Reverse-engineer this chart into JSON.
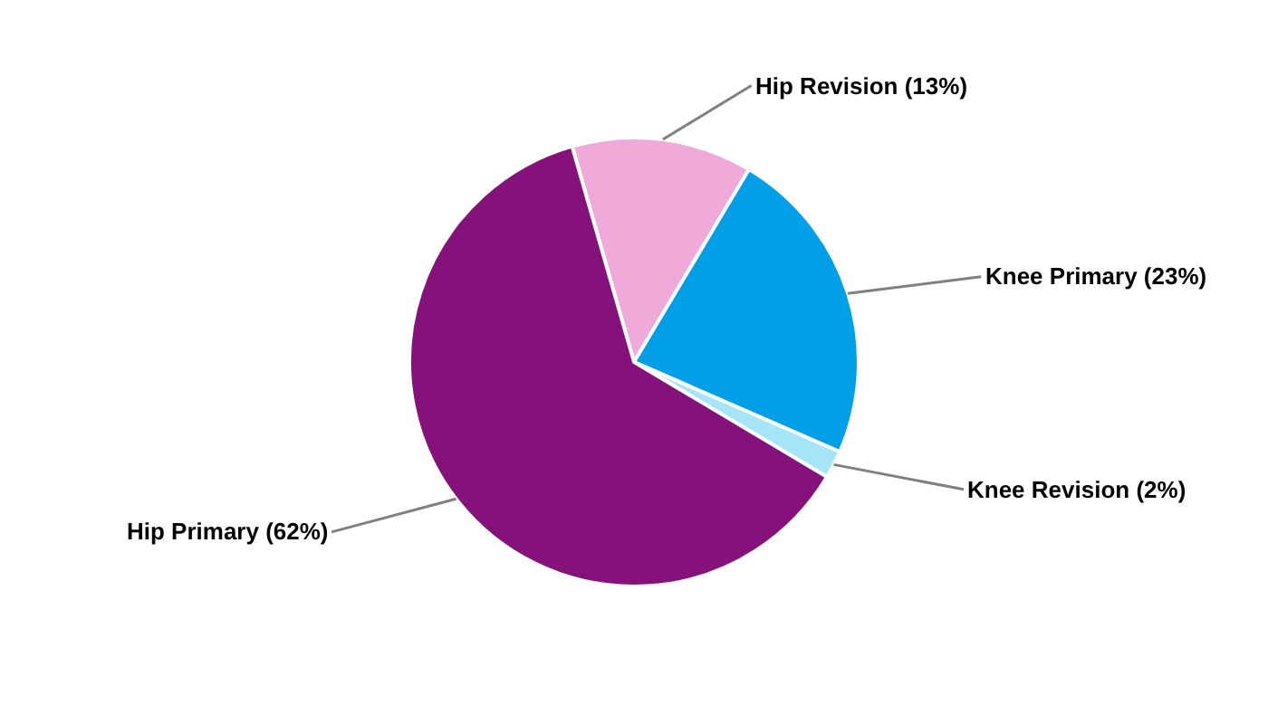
{
  "chart_data": {
    "type": "pie",
    "categories": [
      "Hip Revision (13%)",
      "Knee Primary (23%)",
      "Knee Revision (2%)",
      "Hip Primary (62%)"
    ],
    "values": [
      13,
      23,
      2,
      62
    ],
    "colors": [
      "#f0aad9",
      "#009fe8",
      "#a6e4fa",
      "#85117a"
    ],
    "legend": false
  }
}
